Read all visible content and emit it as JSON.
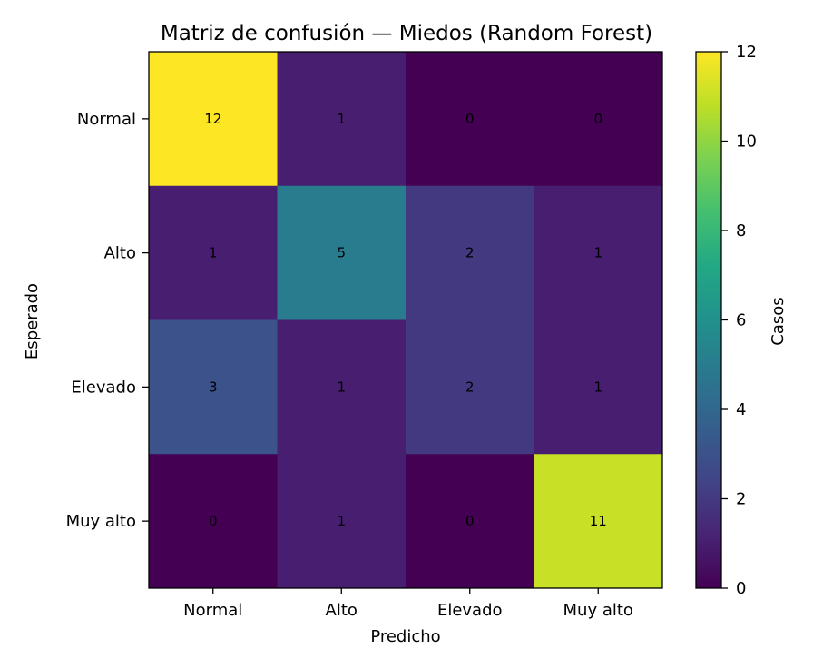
{
  "chart_data": {
    "type": "heatmap",
    "title": "Matriz de confusión — Miedos (Random Forest)",
    "xlabel": "Predicho",
    "ylabel": "Esperado",
    "x_categories": [
      "Normal",
      "Alto",
      "Elevado",
      "Muy alto"
    ],
    "y_categories": [
      "Normal",
      "Alto",
      "Elevado",
      "Muy alto"
    ],
    "values": [
      [
        12,
        1,
        0,
        0
      ],
      [
        1,
        5,
        2,
        1
      ],
      [
        3,
        1,
        2,
        1
      ],
      [
        0,
        1,
        0,
        11
      ]
    ],
    "colorbar": {
      "label": "Casos",
      "ticks": [
        "0",
        "2",
        "4",
        "6",
        "8",
        "10",
        "12"
      ],
      "range": [
        0,
        12
      ],
      "colormap": "viridis"
    },
    "grid": false
  }
}
